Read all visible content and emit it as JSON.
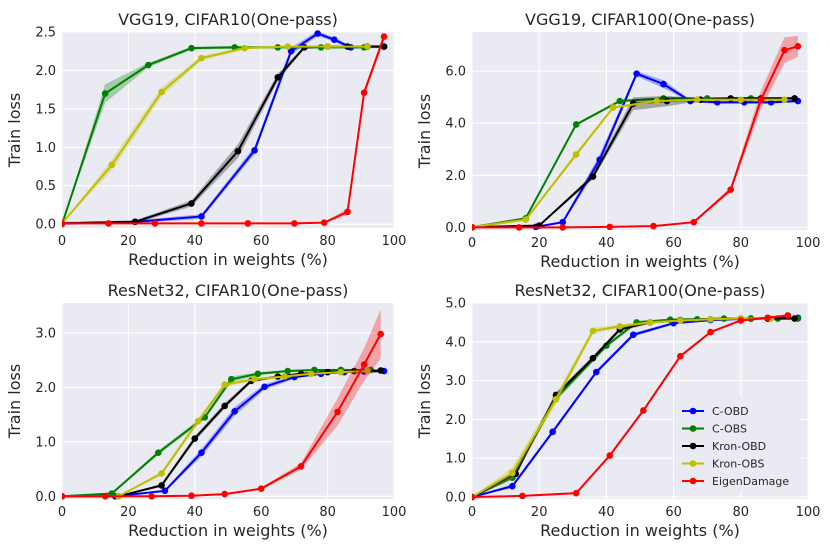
{
  "chart_data": [
    {
      "type": "line",
      "title": "VGG19, CIFAR10(One-pass)",
      "xlabel": "Reduction in weights (%)",
      "ylabel": "Train loss",
      "xlim": [
        0,
        100
      ],
      "ylim": [
        -0.05,
        2.5
      ],
      "xticks": [
        "0",
        "20",
        "40",
        "60",
        "80",
        "100"
      ],
      "xtick_values": [
        0,
        20,
        40,
        60,
        80,
        100
      ],
      "yticks": [
        "0.0",
        "0.5",
        "1.0",
        "1.5",
        "2.0",
        "2.5"
      ],
      "ytick_values": [
        0,
        0.5,
        1.0,
        1.5,
        2.0,
        2.5
      ],
      "legend": false,
      "series": [
        {
          "name": "C-OBD",
          "color": "#0000ff",
          "x": [
            0,
            22,
            42,
            58,
            69,
            77,
            82,
            87,
            92,
            97
          ],
          "y": [
            0.01,
            0.03,
            0.1,
            0.96,
            2.25,
            2.48,
            2.4,
            2.3,
            2.31,
            2.31
          ],
          "band": [
            0.02,
            0.02,
            0.03,
            0.05,
            0.05,
            0.03,
            0.03,
            0.02,
            0.02,
            0.02
          ]
        },
        {
          "name": "C-OBS",
          "color": "#008000",
          "x": [
            0,
            13,
            26,
            39,
            52,
            65,
            78,
            91
          ],
          "y": [
            0.0,
            1.7,
            2.07,
            2.29,
            2.3,
            2.3,
            2.3,
            2.3
          ],
          "band": [
            0.0,
            0.12,
            0.03,
            0.02,
            0.02,
            0.01,
            0.01,
            0.01
          ]
        },
        {
          "name": "Kron-OBD",
          "color": "#000000",
          "x": [
            0,
            22,
            39,
            53,
            65,
            73,
            80,
            86,
            92,
            97
          ],
          "y": [
            0.01,
            0.03,
            0.27,
            0.95,
            1.91,
            2.3,
            2.31,
            2.31,
            2.31,
            2.31
          ],
          "band": [
            0.0,
            0.02,
            0.04,
            0.09,
            0.05,
            0.02,
            0.01,
            0.01,
            0.01,
            0.01
          ]
        },
        {
          "name": "Kron-OBS",
          "color": "#bfbf00",
          "x": [
            0,
            15,
            30,
            42,
            55,
            68,
            80,
            92
          ],
          "y": [
            0.01,
            0.77,
            1.72,
            2.16,
            2.29,
            2.31,
            2.31,
            2.31
          ],
          "band": [
            0.0,
            0.07,
            0.06,
            0.03,
            0.02,
            0.01,
            0.01,
            0.01
          ]
        },
        {
          "name": "EigenDamage",
          "color": "#ff0000",
          "x": [
            0,
            14,
            28,
            42,
            56,
            70,
            79,
            86,
            91,
            97
          ],
          "y": [
            0.01,
            0.01,
            0.01,
            0.01,
            0.01,
            0.01,
            0.02,
            0.16,
            1.71,
            2.44
          ],
          "band": [
            0.0,
            0.0,
            0.0,
            0.0,
            0.0,
            0.0,
            0.01,
            0.04,
            0.05,
            0.05
          ]
        }
      ]
    },
    {
      "type": "line",
      "title": "VGG19, CIFAR100(One-pass)",
      "xlabel": "Reduction in weights (%)",
      "ylabel": "Train loss",
      "xlim": [
        0,
        100
      ],
      "ylim": [
        -0.1,
        7.5
      ],
      "xticks": [
        "0",
        "20",
        "40",
        "60",
        "80",
        "100"
      ],
      "xtick_values": [
        0,
        20,
        40,
        60,
        80,
        100
      ],
      "yticks": [
        "0.0",
        "2.0",
        "4.0",
        "6.0"
      ],
      "ytick_values": [
        0,
        2,
        4,
        6
      ],
      "legend": false,
      "series": [
        {
          "name": "C-OBD",
          "color": "#0000ff",
          "x": [
            0,
            19,
            27,
            38,
            49,
            57,
            65,
            73,
            81,
            89,
            97
          ],
          "y": [
            0.01,
            0.02,
            0.2,
            2.6,
            5.9,
            5.5,
            4.85,
            4.8,
            4.8,
            4.8,
            4.85
          ],
          "band": [
            0.0,
            0.0,
            0.05,
            0.2,
            0.1,
            0.15,
            0.05,
            0.05,
            0.05,
            0.05,
            0.05
          ]
        },
        {
          "name": "C-OBS",
          "color": "#008000",
          "x": [
            0,
            16,
            31,
            44,
            57,
            70,
            83,
            96
          ],
          "y": [
            0.01,
            0.35,
            3.95,
            4.85,
            4.95,
            4.95,
            4.95,
            4.95
          ],
          "band": [
            0.0,
            0.05,
            0.05,
            0.05,
            0.05,
            0.05,
            0.05,
            0.05
          ]
        },
        {
          "name": "Kron-OBD",
          "color": "#000000",
          "x": [
            0,
            20,
            36,
            48,
            58,
            68,
            77,
            86,
            96
          ],
          "y": [
            0.01,
            0.07,
            1.95,
            4.75,
            4.85,
            4.9,
            4.95,
            4.95,
            4.95
          ],
          "band": [
            0.0,
            0.03,
            0.1,
            0.25,
            0.2,
            0.05,
            0.05,
            0.05,
            0.05
          ]
        },
        {
          "name": "Kron-OBS",
          "color": "#bfbf00",
          "x": [
            0,
            16,
            31,
            42,
            55,
            67,
            80,
            93
          ],
          "y": [
            0.01,
            0.3,
            2.8,
            4.6,
            4.85,
            4.9,
            4.9,
            4.9
          ],
          "band": [
            0.0,
            0.05,
            0.1,
            0.05,
            0.05,
            0.05,
            0.05,
            0.05
          ]
        },
        {
          "name": "EigenDamage",
          "color": "#ff0000",
          "x": [
            0,
            14,
            27,
            41,
            54,
            66,
            77,
            86,
            93,
            97
          ],
          "y": [
            0.0,
            0.0,
            0.0,
            0.02,
            0.05,
            0.2,
            1.45,
            4.9,
            6.8,
            6.95
          ],
          "band": [
            0.0,
            0.0,
            0.0,
            0.0,
            0.0,
            0.02,
            0.1,
            0.35,
            0.5,
            0.4
          ]
        }
      ]
    },
    {
      "type": "line",
      "title": "ResNet32, CIFAR10(One-pass)",
      "xlabel": "Reduction in weights (%)",
      "ylabel": "Train loss",
      "xlim": [
        0,
        100
      ],
      "ylim": [
        -0.05,
        3.55
      ],
      "xticks": [
        "0",
        "20",
        "40",
        "60",
        "80",
        "100"
      ],
      "xtick_values": [
        0,
        20,
        40,
        60,
        80,
        100
      ],
      "yticks": [
        "0.0",
        "1.0",
        "2.0",
        "3.0"
      ],
      "ytick_values": [
        0,
        1,
        2,
        3
      ],
      "legend": false,
      "series": [
        {
          "name": "C-OBD",
          "color": "#0000ff",
          "x": [
            0,
            16,
            31,
            42,
            52,
            61,
            70,
            78,
            85,
            91,
            97
          ],
          "y": [
            0.0,
            0.0,
            0.1,
            0.8,
            1.56,
            2.01,
            2.19,
            2.25,
            2.28,
            2.29,
            2.3
          ],
          "band": [
            0.0,
            0.0,
            0.02,
            0.07,
            0.08,
            0.05,
            0.03,
            0.02,
            0.02,
            0.02,
            0.02
          ]
        },
        {
          "name": "C-OBS",
          "color": "#008000",
          "x": [
            0,
            15,
            29,
            43,
            51,
            59,
            68,
            76,
            84,
            93
          ],
          "y": [
            0.0,
            0.05,
            0.8,
            1.45,
            2.15,
            2.25,
            2.3,
            2.32,
            2.32,
            2.32
          ],
          "band": [
            0.0,
            0.02,
            0.04,
            0.04,
            0.05,
            0.03,
            0.02,
            0.02,
            0.02,
            0.02
          ]
        },
        {
          "name": "Kron-OBD",
          "color": "#000000",
          "x": [
            0,
            17,
            30,
            40,
            49,
            57,
            65,
            72,
            80,
            88,
            96
          ],
          "y": [
            0.0,
            0.0,
            0.2,
            1.06,
            1.66,
            2.12,
            2.2,
            2.25,
            2.28,
            2.3,
            2.31
          ],
          "band": [
            0.0,
            0.0,
            0.03,
            0.05,
            0.05,
            0.03,
            0.02,
            0.02,
            0.02,
            0.02,
            0.02
          ]
        },
        {
          "name": "Kron-OBS",
          "color": "#bfbf00",
          "x": [
            0,
            17,
            30,
            41,
            49,
            58,
            67,
            75,
            84,
            92
          ],
          "y": [
            0.0,
            0.0,
            0.42,
            1.38,
            2.05,
            2.15,
            2.2,
            2.25,
            2.28,
            2.3
          ],
          "band": [
            0.0,
            0.0,
            0.04,
            0.05,
            0.04,
            0.03,
            0.02,
            0.02,
            0.02,
            0.02
          ]
        },
        {
          "name": "EigenDamage",
          "color": "#ff0000",
          "x": [
            0,
            13,
            27,
            39,
            49,
            60,
            72,
            83,
            91,
            96
          ],
          "y": [
            0.0,
            0.0,
            0.0,
            0.01,
            0.04,
            0.14,
            0.55,
            1.55,
            2.42,
            2.98
          ],
          "band": [
            0.0,
            0.0,
            0.0,
            0.0,
            0.01,
            0.02,
            0.06,
            0.25,
            0.3,
            0.45
          ]
        }
      ]
    },
    {
      "type": "line",
      "title": "ResNet32, CIFAR100(One-pass)",
      "xlabel": "Reduction in weights (%)",
      "ylabel": "Train loss",
      "xlim": [
        0,
        100
      ],
      "ylim": [
        -0.05,
        5.0
      ],
      "xticks": [
        "0",
        "20",
        "40",
        "60",
        "80",
        "100"
      ],
      "xtick_values": [
        0,
        20,
        40,
        60,
        80,
        100
      ],
      "yticks": [
        "0.0",
        "1.0",
        "2.0",
        "3.0",
        "4.0",
        "5.0"
      ],
      "ytick_values": [
        0,
        1,
        2,
        3,
        4,
        5
      ],
      "legend": true,
      "legend_position": "lower right",
      "series": [
        {
          "name": "C-OBD",
          "color": "#0000ff",
          "x": [
            0,
            12,
            24,
            37,
            48,
            60,
            71,
            83,
            97
          ],
          "y": [
            0.0,
            0.28,
            1.68,
            3.22,
            4.18,
            4.48,
            4.56,
            4.6,
            4.62
          ],
          "band": [
            0.0,
            0.05,
            0.05,
            0.05,
            0.05,
            0.03,
            0.03,
            0.03,
            0.03
          ]
        },
        {
          "name": "C-OBS",
          "color": "#008000",
          "x": [
            0,
            12,
            25,
            40,
            49,
            59,
            67,
            75,
            83,
            91,
            97
          ],
          "y": [
            0.0,
            0.5,
            2.55,
            3.9,
            4.5,
            4.57,
            4.58,
            4.6,
            4.6,
            4.6,
            4.6
          ],
          "band": [
            0.0,
            0.06,
            0.08,
            0.06,
            0.04,
            0.03,
            0.03,
            0.03,
            0.03,
            0.03,
            0.03
          ]
        },
        {
          "name": "Kron-OBD",
          "color": "#000000",
          "x": [
            0,
            13,
            25,
            36,
            44,
            53,
            62,
            71,
            80,
            88,
            96
          ],
          "y": [
            0.0,
            0.6,
            2.63,
            3.58,
            4.32,
            4.5,
            4.56,
            4.58,
            4.6,
            4.6,
            4.6
          ],
          "band": [
            0.0,
            0.06,
            0.06,
            0.06,
            0.05,
            0.03,
            0.03,
            0.03,
            0.03,
            0.03,
            0.03
          ]
        },
        {
          "name": "Kron-OBS",
          "color": "#bfbf00",
          "x": [
            0,
            12,
            25,
            36,
            44,
            53,
            62,
            71,
            80,
            89
          ],
          "y": [
            0.0,
            0.62,
            2.52,
            4.28,
            4.4,
            4.5,
            4.55,
            4.58,
            4.6,
            4.6
          ],
          "band": [
            0.0,
            0.15,
            0.12,
            0.08,
            0.05,
            0.04,
            0.03,
            0.03,
            0.03,
            0.03
          ]
        },
        {
          "name": "EigenDamage",
          "color": "#ff0000",
          "x": [
            0,
            15,
            31,
            41,
            51,
            62,
            71,
            80,
            88,
            94
          ],
          "y": [
            0.0,
            0.03,
            0.1,
            1.07,
            2.23,
            3.63,
            4.25,
            4.55,
            4.62,
            4.68
          ],
          "band": [
            0.0,
            0.0,
            0.01,
            0.04,
            0.05,
            0.04,
            0.03,
            0.03,
            0.03,
            0.03
          ]
        }
      ]
    }
  ]
}
